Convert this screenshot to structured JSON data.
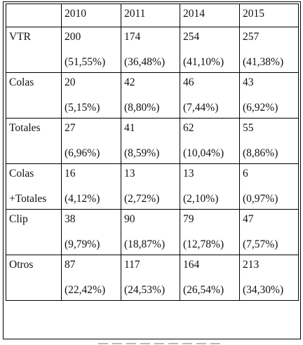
{
  "table": {
    "years": [
      "2010",
      "2011",
      "2014",
      "2015"
    ],
    "rows": [
      {
        "label": [
          "VTR"
        ],
        "cells": [
          {
            "count": "200",
            "pct": "(51,55%)"
          },
          {
            "count": "174",
            "pct": "(36,48%)"
          },
          {
            "count": "254",
            "pct": "(41,10%)"
          },
          {
            "count": "257",
            "pct": "(41,38%)"
          }
        ]
      },
      {
        "label": [
          "Colas"
        ],
        "cells": [
          {
            "count": "20",
            "pct": "(5,15%)"
          },
          {
            "count": "42",
            "pct": "(8,80%)"
          },
          {
            "count": "46",
            "pct": "(7,44%)"
          },
          {
            "count": "43",
            "pct": "(6,92%)"
          }
        ]
      },
      {
        "label": [
          "Totales"
        ],
        "cells": [
          {
            "count": "27",
            "pct": "(6,96%)"
          },
          {
            "count": "41",
            "pct": "(8,59%)"
          },
          {
            "count": "62",
            "pct": "(10,04%)"
          },
          {
            "count": "55",
            "pct": "(8,86%)"
          }
        ]
      },
      {
        "label": [
          "Colas",
          "+Totales"
        ],
        "cells": [
          {
            "count": "16",
            "pct": "(4,12%)"
          },
          {
            "count": "13",
            "pct": "(2,72%)"
          },
          {
            "count": "13",
            "pct": "(2,10%)"
          },
          {
            "count": "6",
            "pct": "(0,97%)"
          }
        ]
      },
      {
        "label": [
          "Clip"
        ],
        "cells": [
          {
            "count": "38",
            "pct": "(9,79%)"
          },
          {
            "count": "90",
            "pct": "(18,87%)"
          },
          {
            "count": "79",
            "pct": "(12,78%)"
          },
          {
            "count": "47",
            "pct": "(7,57%)"
          }
        ]
      },
      {
        "label": [
          "Otros"
        ],
        "cells": [
          {
            "count": "87",
            "pct": "(22,42%)"
          },
          {
            "count": "117",
            "pct": "(24,53%)"
          },
          {
            "count": "164",
            "pct": "(26,54%)"
          },
          {
            "count": "213",
            "pct": "(34,30%)"
          }
        ]
      }
    ]
  }
}
